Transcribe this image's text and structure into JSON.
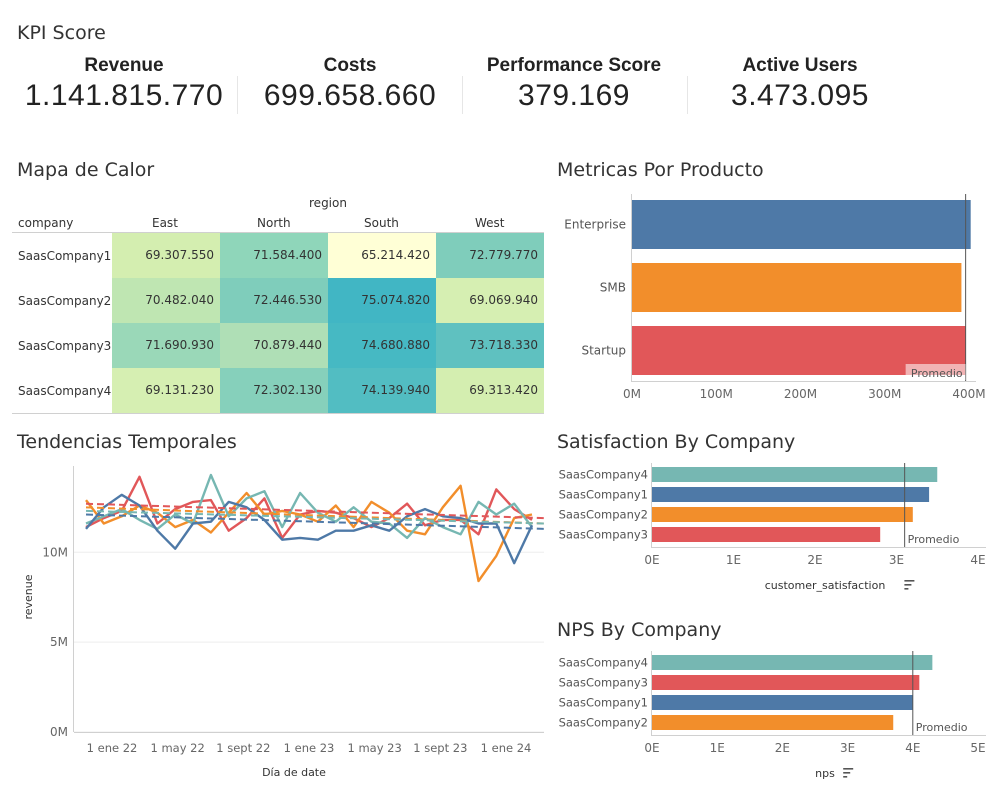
{
  "kpi": {
    "title": "KPI Score",
    "items": [
      {
        "label": "Revenue",
        "value": "1.141.815.770"
      },
      {
        "label": "Costs",
        "value": "699.658.660"
      },
      {
        "label": "Performance Score",
        "value": "379.169"
      },
      {
        "label": "Active Users",
        "value": "3.473.095"
      }
    ]
  },
  "heatmap": {
    "title": "Mapa de Calor",
    "column_group_label": "region",
    "row_header": "company",
    "columns": [
      "East",
      "North",
      "South",
      "West"
    ],
    "rows": [
      {
        "company": "SaasCompany1",
        "values": [
          "69.307.550",
          "71.584.400",
          "65.214.420",
          "72.779.770"
        ],
        "colors": [
          "#d4eeb0",
          "#8fd6ba",
          "#ffffd6",
          "#7fcdbb"
        ]
      },
      {
        "company": "SaasCompany2",
        "values": [
          "70.482.040",
          "72.446.530",
          "75.074.820",
          "69.069.940"
        ],
        "colors": [
          "#bfe6b2",
          "#7fcdbb",
          "#41b6c4",
          "#d6efb2"
        ]
      },
      {
        "company": "SaasCompany3",
        "values": [
          "71.690.930",
          "70.879.440",
          "74.680.880",
          "73.718.330"
        ],
        "colors": [
          "#9ad8b8",
          "#afdfb6",
          "#46b9c3",
          "#5fc1c0"
        ]
      },
      {
        "company": "SaasCompany4",
        "values": [
          "69.131.230",
          "72.302.130",
          "74.139.940",
          "69.313.420"
        ],
        "colors": [
          "#d6efb2",
          "#86d0bb",
          "#52bdc2",
          "#d4eeb0"
        ]
      }
    ]
  },
  "product": {
    "title": "Metricas Por Producto",
    "reference_label": "Promedio",
    "chart_data": {
      "type": "bar",
      "orientation": "horizontal",
      "categories": [
        "Enterprise",
        "SMB",
        "Startup"
      ],
      "values": [
        402,
        391,
        396
      ],
      "colors": [
        "#4e79a7",
        "#f28e2b",
        "#e15759"
      ],
      "reference_line": 396,
      "xlim": [
        0,
        400
      ],
      "x_ticks": [
        "0M",
        "100M",
        "200M",
        "300M",
        "400M"
      ],
      "x_tick_values": [
        0,
        100,
        200,
        300,
        400
      ]
    }
  },
  "trends": {
    "title": "Tendencias Temporales",
    "chart_data": {
      "type": "line",
      "xlabel": "Día de date",
      "ylabel": "revenue",
      "x_ticks": [
        "1 ene 22",
        "1 may 22",
        "1 sept 22",
        "1 ene 23",
        "1 may 23",
        "1 sept 23",
        "1 ene 24"
      ],
      "y_ticks": [
        "0M",
        "5M",
        "10M"
      ],
      "y_tick_values": [
        0,
        5,
        10
      ],
      "ylim": [
        0,
        14.8
      ],
      "x_count": 26,
      "series": [
        {
          "color": "#e15759",
          "values": [
            11.4,
            11.9,
            12.3,
            14.2,
            11.6,
            12.4,
            12.8,
            12.9,
            11.2,
            11.9,
            13.0,
            10.8,
            12.1,
            12.3,
            12.2,
            11.9,
            11.4,
            11.9,
            12.7,
            11.5,
            11.8,
            11.8,
            11.0,
            13.5,
            12.4,
            11.8
          ],
          "trend": [
            12.7,
            11.9
          ]
        },
        {
          "color": "#f28e2b",
          "values": [
            12.9,
            11.6,
            12.0,
            12.6,
            12.2,
            11.4,
            11.8,
            11.1,
            12.2,
            13.3,
            12.1,
            12.3,
            12.1,
            11.7,
            12.6,
            11.4,
            12.8,
            12.2,
            11.2,
            11.0,
            12.5,
            13.7,
            8.4,
            9.8,
            11.9,
            12.1
          ],
          "trend": [
            12.5,
            11.6
          ]
        },
        {
          "color": "#76b7b2",
          "values": [
            11.6,
            12.0,
            12.4,
            11.8,
            11.3,
            12.1,
            11.6,
            14.3,
            12.0,
            13.0,
            13.4,
            11.4,
            13.3,
            12.2,
            11.7,
            12.5,
            11.7,
            11.6,
            10.8,
            11.9,
            11.4,
            11.0,
            12.8,
            12.1,
            12.7,
            11.4
          ],
          "trend": [
            12.3,
            11.6
          ]
        },
        {
          "color": "#4e79a7",
          "values": [
            11.3,
            12.5,
            13.2,
            12.6,
            11.2,
            10.2,
            11.6,
            11.7,
            12.8,
            12.5,
            11.8,
            10.7,
            10.8,
            10.7,
            11.2,
            11.2,
            11.5,
            11.2,
            12.0,
            12.4,
            12.0,
            11.9,
            11.6,
            11.6,
            9.4,
            11.5
          ],
          "trend": [
            12.1,
            11.3
          ]
        }
      ]
    }
  },
  "satisfaction": {
    "title": "Satisfaction By Company",
    "xlabel": "customer_satisfaction",
    "reference_label": "Promedio",
    "chart_data": {
      "type": "bar",
      "orientation": "horizontal",
      "categories": [
        "SaasCompany4",
        "SaasCompany1",
        "SaasCompany2",
        "SaasCompany3"
      ],
      "values": [
        3.5,
        3.4,
        3.2,
        2.8
      ],
      "colors": [
        "#76b7b2",
        "#4e79a7",
        "#f28e2b",
        "#e15759"
      ],
      "reference_line": 3.1,
      "xlim": [
        0,
        4
      ],
      "x_ticks": [
        "0E",
        "1E",
        "2E",
        "3E",
        "4E"
      ],
      "x_tick_values": [
        0,
        1,
        2,
        3,
        4
      ]
    }
  },
  "nps": {
    "title": "NPS By Company",
    "xlabel": "nps",
    "reference_label": "Promedio",
    "chart_data": {
      "type": "bar",
      "orientation": "horizontal",
      "categories": [
        "SaasCompany4",
        "SaasCompany3",
        "SaasCompany1",
        "SaasCompany2"
      ],
      "values": [
        4.3,
        4.1,
        4.0,
        3.7
      ],
      "colors": [
        "#76b7b2",
        "#e15759",
        "#4e79a7",
        "#f28e2b"
      ],
      "reference_line": 4.0,
      "xlim": [
        0,
        5
      ],
      "x_ticks": [
        "0E",
        "1E",
        "2E",
        "3E",
        "4E",
        "5E"
      ],
      "x_tick_values": [
        0,
        1,
        2,
        3,
        4,
        5
      ]
    }
  }
}
